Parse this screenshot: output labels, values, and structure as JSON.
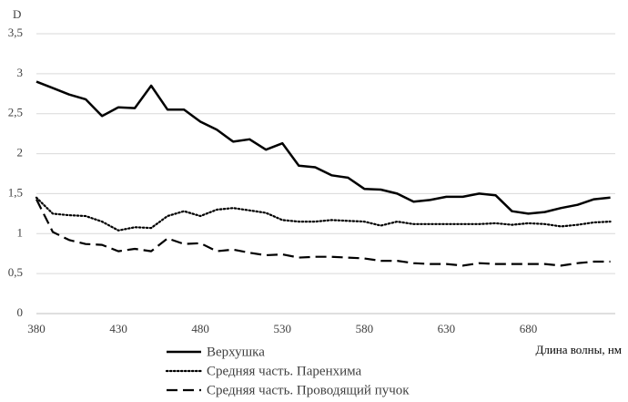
{
  "chart_data": {
    "type": "line",
    "y_label": "D",
    "x_label": "Длина волны, нм",
    "x": [
      380,
      390,
      400,
      410,
      420,
      430,
      440,
      450,
      460,
      470,
      480,
      490,
      500,
      510,
      520,
      530,
      540,
      550,
      560,
      570,
      580,
      590,
      600,
      610,
      620,
      630,
      640,
      650,
      660,
      670,
      680,
      690,
      700,
      710,
      720,
      730
    ],
    "series": [
      {
        "name": "Верхушка",
        "color": "#000000",
        "dash": "solid",
        "values": [
          2.9,
          2.82,
          2.74,
          2.68,
          2.47,
          2.58,
          2.57,
          2.85,
          2.55,
          2.55,
          2.4,
          2.3,
          2.15,
          2.18,
          2.05,
          2.13,
          1.85,
          1.83,
          1.73,
          1.7,
          1.56,
          1.55,
          1.5,
          1.4,
          1.42,
          1.46,
          1.46,
          1.5,
          1.48,
          1.28,
          1.25,
          1.27,
          1.32,
          1.36,
          1.43,
          1.45
        ]
      },
      {
        "name": "Средняя часть. Паренхима",
        "color": "#000000",
        "dash": "dotted",
        "values": [
          1.45,
          1.25,
          1.23,
          1.22,
          1.15,
          1.04,
          1.08,
          1.07,
          1.22,
          1.28,
          1.22,
          1.3,
          1.32,
          1.29,
          1.26,
          1.17,
          1.15,
          1.15,
          1.17,
          1.16,
          1.15,
          1.1,
          1.15,
          1.12,
          1.12,
          1.12,
          1.12,
          1.12,
          1.13,
          1.11,
          1.13,
          1.12,
          1.09,
          1.11,
          1.14,
          1.15
        ]
      },
      {
        "name": "Средняя часть. Проводящий пучок",
        "color": "#000000",
        "dash": "dashed",
        "values": [
          1.43,
          1.02,
          0.92,
          0.87,
          0.86,
          0.78,
          0.81,
          0.78,
          0.94,
          0.87,
          0.88,
          0.78,
          0.8,
          0.76,
          0.73,
          0.74,
          0.7,
          0.71,
          0.71,
          0.7,
          0.69,
          0.66,
          0.66,
          0.63,
          0.62,
          0.62,
          0.6,
          0.63,
          0.62,
          0.62,
          0.62,
          0.62,
          0.6,
          0.63,
          0.65,
          0.65
        ]
      }
    ],
    "xlim": [
      380,
      733
    ],
    "xticks": [
      380,
      430,
      480,
      530,
      580,
      630,
      680
    ],
    "ylim": [
      0,
      3.5
    ],
    "yticks": [
      0,
      {
        "value": 0.5,
        "label": "0,5"
      },
      1,
      {
        "value": 1.5,
        "label": "1,5"
      },
      2,
      {
        "value": 2.5,
        "label": "2,5"
      },
      3,
      {
        "value": 3.5,
        "label": "3,5"
      }
    ],
    "grid": true,
    "legend": "bottom-left"
  }
}
